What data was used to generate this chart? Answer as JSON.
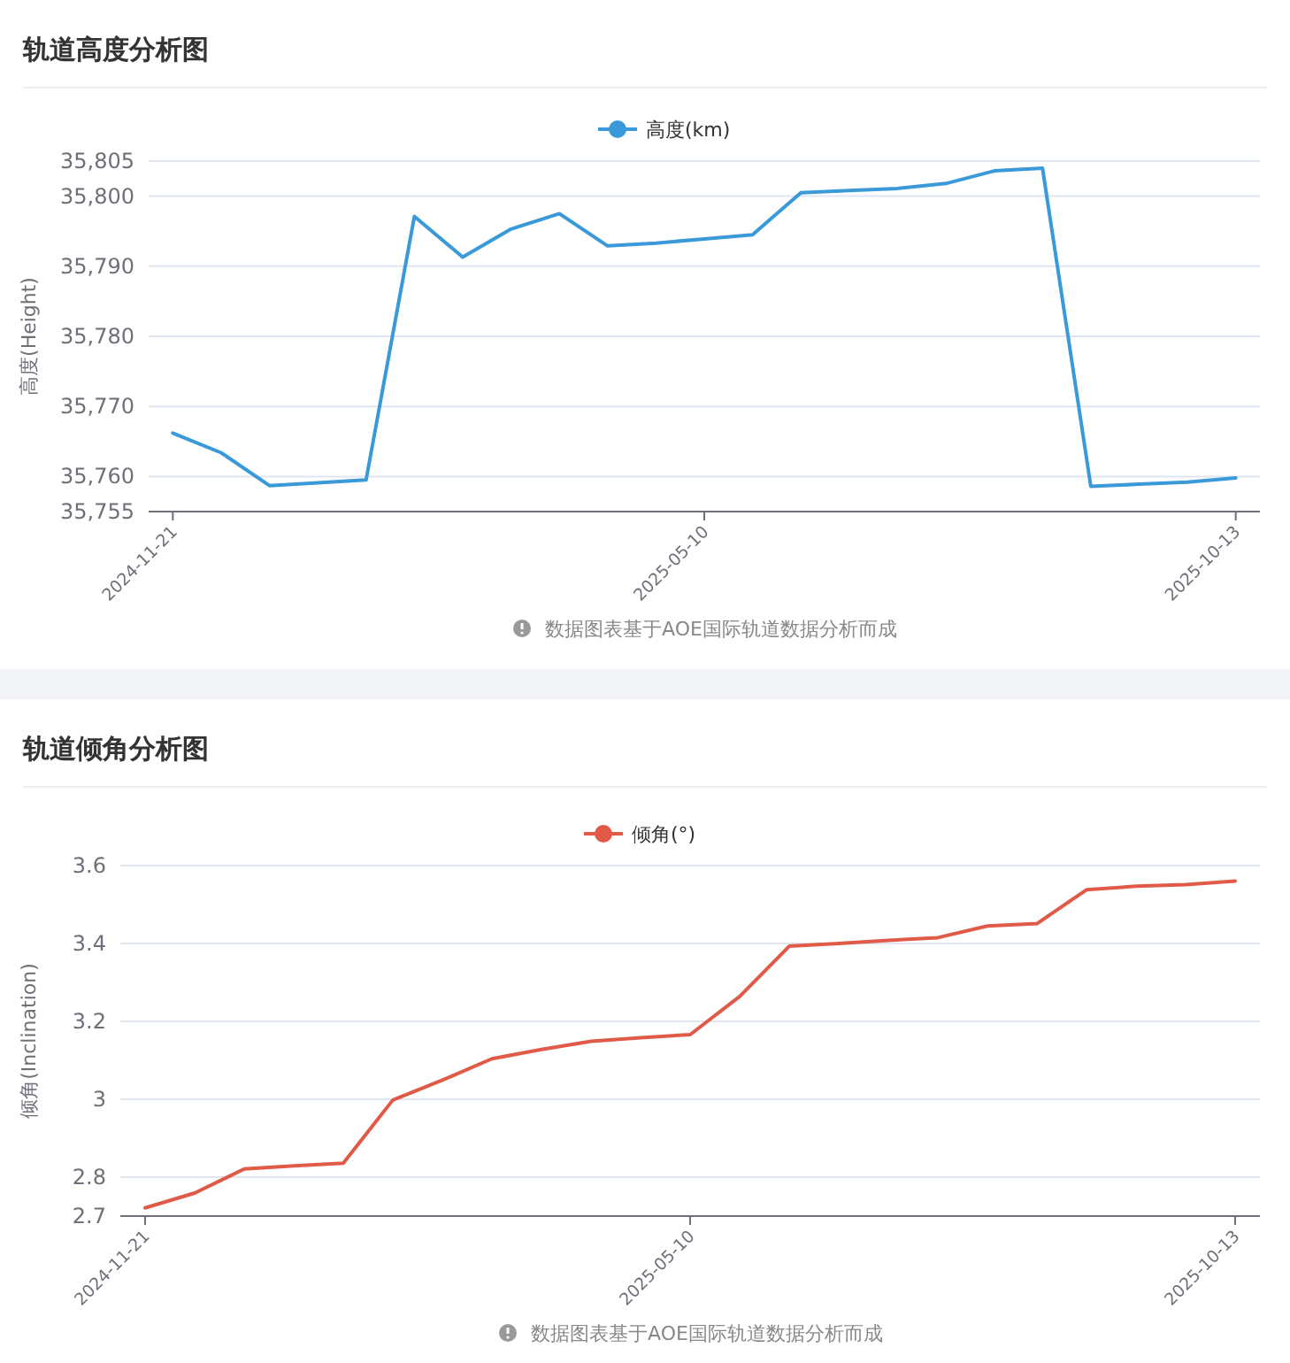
{
  "chart_data": [
    {
      "type": "line",
      "title": "轨道高度分析图",
      "ylabel": "高度(Height)",
      "legend": "top",
      "grid": "y",
      "categories": [
        "2024-11-21",
        null,
        null,
        null,
        null,
        null,
        null,
        null,
        null,
        null,
        null,
        "2025-05-10",
        null,
        null,
        null,
        null,
        null,
        null,
        null,
        null,
        null,
        null,
        "2025-10-13"
      ],
      "series": [
        {
          "name": "高度(km)",
          "color": "#3a9ad9",
          "values": [
            35766.2,
            35763.4,
            35758.7,
            35759.1,
            35759.5,
            35797.1,
            35791.3,
            35795.3,
            35797.5,
            35792.9,
            35793.3,
            35793.9,
            35794.5,
            35800.5,
            35800.8,
            35801.1,
            35801.8,
            35803.6,
            35804.0,
            35758.6,
            35758.9,
            35759.2,
            35759.8
          ]
        }
      ],
      "ylim": [
        35755,
        35805
      ],
      "yticks": [
        {
          "value": 35755,
          "label": "35,755"
        },
        {
          "value": 35760,
          "label": "35,760"
        },
        {
          "value": 35770,
          "label": "35,770"
        },
        {
          "value": 35780,
          "label": "35,780"
        },
        {
          "value": 35790,
          "label": "35,790"
        },
        {
          "value": 35800,
          "label": "35,800"
        },
        {
          "value": 35805,
          "label": "35,805"
        }
      ],
      "annotations": [
        "数据图表基于AOE国际轨道数据分析而成"
      ]
    },
    {
      "type": "line",
      "title": "轨道倾角分析图",
      "ylabel": "倾角(Inclination)",
      "legend": "top",
      "grid": "y",
      "categories": [
        "2024-11-21",
        null,
        null,
        null,
        null,
        null,
        null,
        null,
        null,
        null,
        null,
        "2025-05-10",
        null,
        null,
        null,
        null,
        null,
        null,
        null,
        null,
        null,
        null,
        "2025-10-13"
      ],
      "series": [
        {
          "name": "倾角(°)",
          "color": "#e05a47",
          "values": [
            2.721,
            2.759,
            2.821,
            2.829,
            2.836,
            2.998,
            3.049,
            3.104,
            3.128,
            3.149,
            3.158,
            3.166,
            3.264,
            3.393,
            3.4,
            3.408,
            3.415,
            3.445,
            3.451,
            3.538,
            3.547,
            3.551,
            3.56
          ]
        }
      ],
      "ylim": [
        2.7,
        3.6
      ],
      "yticks": [
        2.7,
        2.8,
        3,
        3.2,
        3.4,
        3.6
      ],
      "annotations": [
        "数据图表基于AOE国际轨道数据分析而成"
      ]
    }
  ]
}
